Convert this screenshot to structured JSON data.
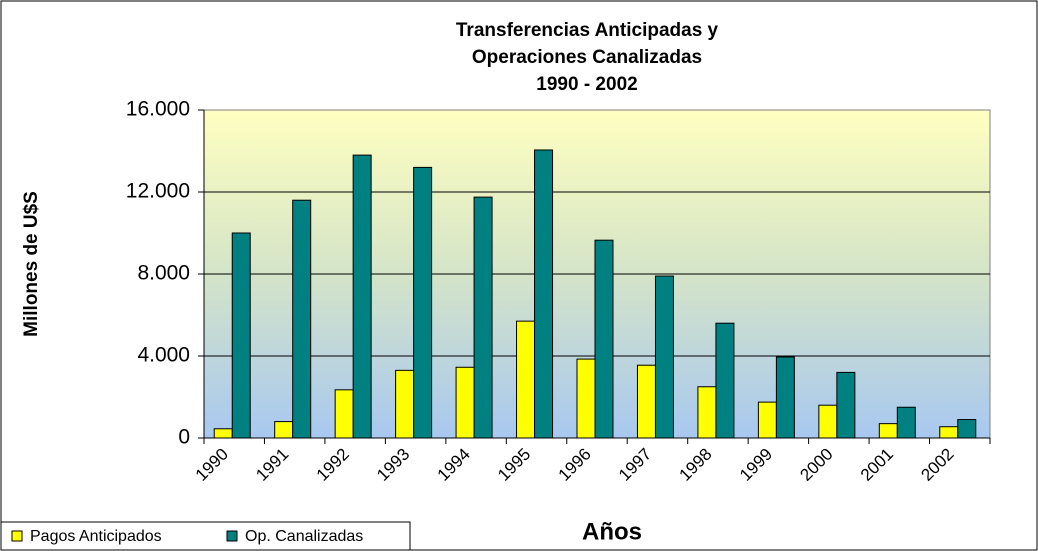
{
  "chart_data": {
    "type": "bar",
    "title": [
      "Transferencias Anticipadas y",
      "Operaciones Canalizadas",
      "1990 - 2002"
    ],
    "ylabel": "Millones de U$S",
    "xlabel": "Años",
    "categories": [
      "1990",
      "1991",
      "1992",
      "1993",
      "1994",
      "1995",
      "1996",
      "1997",
      "1998",
      "1999",
      "2000",
      "2001",
      "2002"
    ],
    "series": [
      {
        "name": "Pagos Anticipados",
        "color": "#ffff00",
        "values": [
          450,
          800,
          2350,
          3300,
          3450,
          5700,
          3850,
          3550,
          2500,
          1750,
          1600,
          700,
          550
        ]
      },
      {
        "name": "Op. Canalizadas",
        "color": "#008080",
        "values": [
          10000,
          11600,
          13800,
          13200,
          11750,
          14050,
          9650,
          7900,
          5600,
          3950,
          3200,
          1500,
          900
        ]
      }
    ],
    "ylim": [
      0,
      16000
    ],
    "yticks": [
      0,
      {
        "value": 4000,
        "label": "4.000"
      },
      {
        "value": 8000,
        "label": "8.000"
      },
      {
        "value": 12000,
        "label": "12.000"
      },
      {
        "value": 16000,
        "label": "16.000"
      }
    ],
    "grid": true,
    "legend": "bottom-left"
  }
}
